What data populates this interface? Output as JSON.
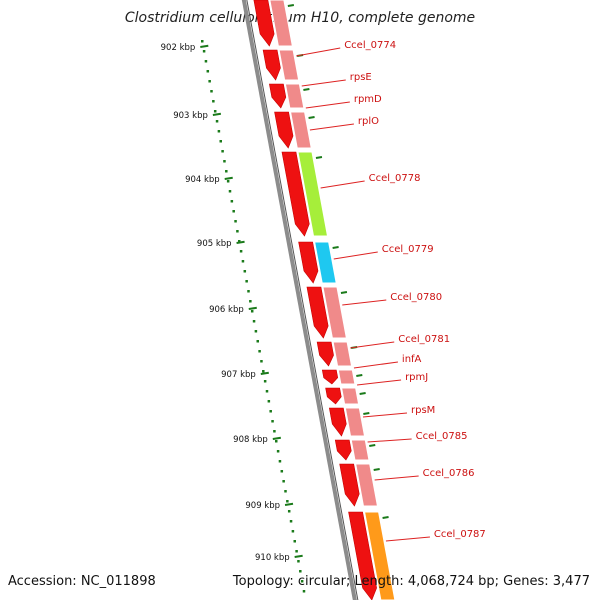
{
  "title": "Clostridium cellulolyticum H10, complete genome",
  "footer": {
    "accession": "Accession: NC_011898",
    "topology": "Topology: circular; Length: 4,068,724 bp; Genes: 3,477"
  },
  "scale_labels": [
    "902 kbp",
    "903 kbp",
    "904 kbp",
    "905 kbp",
    "906 kbp",
    "907 kbp",
    "908 kbp",
    "909 kbp",
    "910 kbp"
  ],
  "genes": [
    {
      "label": "Ccel_0774",
      "color": "#f08a8a"
    },
    {
      "label": "rpsE",
      "color": "#f08a8a"
    },
    {
      "label": "rpmD",
      "color": "#f08a8a"
    },
    {
      "label": "rplO",
      "color": "#f08a8a"
    },
    {
      "label": "Ccel_0778",
      "color": "#a6ee3a"
    },
    {
      "label": "Ccel_0779",
      "color": "#1ec8f0"
    },
    {
      "label": "Ccel_0780",
      "color": "#f08a8a"
    },
    {
      "label": "Ccel_0781",
      "color": "#f08a8a"
    },
    {
      "label": "infA",
      "color": "#f08a8a"
    },
    {
      "label": "rpmJ",
      "color": "#f08a8a"
    },
    {
      "label": "rpsM",
      "color": "#f08a8a"
    },
    {
      "label": "Ccel_0785",
      "color": "#f08a8a"
    },
    {
      "label": "Ccel_0786",
      "color": "#f08a8a"
    },
    {
      "label": "Ccel_0787",
      "color": "#ff9a1a"
    }
  ],
  "colors": {
    "cds_arrow": "#ee1111",
    "backbone": "#7a7a7a",
    "ticks": "#1a7a1a",
    "label_text": "#cc1111",
    "leader_line": "#dd2222"
  }
}
